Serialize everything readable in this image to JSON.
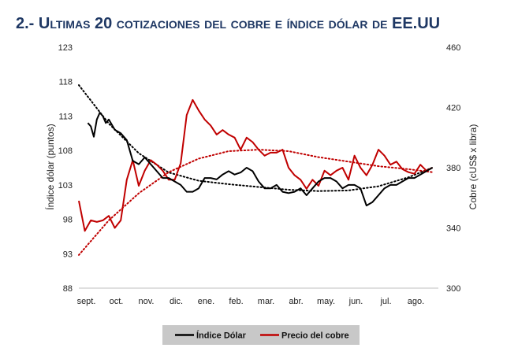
{
  "title": "2.- Ultimas 20 cotizaciones del cobre e índice dólar de EE.UU",
  "chart_data": {
    "type": "line",
    "categories": [
      "sept.",
      "oct.",
      "nov.",
      "dic.",
      "ene.",
      "feb.",
      "mar.",
      "abr.",
      "may.",
      "jun.",
      "jul.",
      "ago."
    ],
    "ylabel_left": "Índice dólar (puntos)",
    "ylabel_right": "Cobre (cUS$ x libra)",
    "y_left": {
      "min": 88,
      "max": 123,
      "ticks": [
        "88",
        "93",
        "98",
        "103",
        "108",
        "113",
        "118",
        "123"
      ]
    },
    "y_right": {
      "min": 300,
      "max": 460,
      "ticks": [
        "300",
        "340",
        "380",
        "420",
        "460"
      ]
    },
    "grid": false,
    "legend_position": "bottom",
    "colors": {
      "dollar": "#000000",
      "copper": "#c00000",
      "legend_bg": "#c8c8c8",
      "title": "#1f3864"
    },
    "series": [
      {
        "name": "Índice Dólar",
        "axis": "left",
        "x": [
          0.3,
          0.4,
          0.5,
          0.6,
          0.7,
          0.8,
          0.9,
          1.0,
          1.2,
          1.4,
          1.6,
          1.8,
          2.0,
          2.2,
          2.4,
          2.6,
          2.8,
          3.0,
          3.2,
          3.4,
          3.6,
          3.8,
          4.0,
          4.2,
          4.4,
          4.6,
          4.8,
          5.0,
          5.2,
          5.4,
          5.6,
          5.8,
          6.0,
          6.2,
          6.4,
          6.6,
          6.8,
          7.0,
          7.2,
          7.4,
          7.6,
          7.8,
          8.0,
          8.2,
          8.4,
          8.6,
          8.8,
          9.0,
          9.2,
          9.4,
          9.6,
          9.8,
          10.0,
          10.2,
          10.4,
          10.6,
          10.8,
          11.0,
          11.2,
          11.4,
          11.6,
          11.8
        ],
        "values": [
          112,
          111.5,
          110,
          112.5,
          113.5,
          113,
          112,
          112.5,
          111,
          110.5,
          109.5,
          106.5,
          106,
          107,
          106,
          105,
          104,
          104,
          103.5,
          103,
          102,
          102,
          102.5,
          104,
          104,
          103.8,
          104.5,
          105,
          104.5,
          104.8,
          105.5,
          105,
          103.5,
          102.5,
          102.5,
          103,
          102,
          101.8,
          102,
          102.5,
          101.5,
          102.5,
          103.5,
          104,
          104,
          103.5,
          102.5,
          103,
          103,
          102.5,
          100,
          100.5,
          101.5,
          102.5,
          103,
          103,
          103.5,
          104,
          104,
          104.5,
          105,
          105.5
        ]
      },
      {
        "name": "Precio del cobre",
        "axis": "right",
        "x": [
          0.0,
          0.2,
          0.4,
          0.6,
          0.8,
          1.0,
          1.2,
          1.4,
          1.6,
          1.8,
          2.0,
          2.2,
          2.4,
          2.6,
          2.8,
          3.0,
          3.2,
          3.4,
          3.6,
          3.8,
          4.0,
          4.2,
          4.4,
          4.6,
          4.8,
          5.0,
          5.2,
          5.4,
          5.6,
          5.8,
          6.0,
          6.2,
          6.4,
          6.6,
          6.8,
          7.0,
          7.2,
          7.4,
          7.6,
          7.8,
          8.0,
          8.2,
          8.4,
          8.6,
          8.8,
          9.0,
          9.2,
          9.4,
          9.6,
          9.8,
          10.0,
          10.2,
          10.4,
          10.6,
          10.8,
          11.0,
          11.2,
          11.4,
          11.6,
          11.8
        ],
        "values": [
          358,
          338,
          345,
          344,
          345,
          348,
          340,
          345,
          372,
          385,
          368,
          378,
          385,
          382,
          378,
          372,
          372,
          383,
          415,
          425,
          418,
          412,
          408,
          402,
          405,
          402,
          400,
          392,
          400,
          397,
          392,
          388,
          390,
          390,
          392,
          380,
          375,
          372,
          366,
          372,
          368,
          378,
          375,
          378,
          380,
          372,
          388,
          380,
          375,
          382,
          392,
          388,
          382,
          384,
          379,
          377,
          376,
          382,
          378,
          380
        ]
      }
    ],
    "trendlines": [
      {
        "series": "Índice Dólar",
        "style": "dotted",
        "x": [
          0,
          1,
          2,
          3,
          4,
          5,
          6,
          7,
          8,
          9,
          10,
          11,
          11.8
        ],
        "values": [
          117.5,
          111.9,
          107.6,
          104.8,
          103.6,
          103.1,
          102.7,
          102.3,
          102.1,
          102.2,
          102.8,
          104.1,
          105.5
        ]
      },
      {
        "series": "Precio del cobre",
        "style": "dotted",
        "x": [
          0,
          1,
          2,
          3,
          4,
          5,
          6,
          7,
          8,
          9,
          10,
          11,
          11.8
        ],
        "values": [
          322,
          345,
          363,
          377,
          386,
          391,
          392,
          391,
          387,
          384,
          381,
          379,
          377
        ]
      }
    ]
  }
}
